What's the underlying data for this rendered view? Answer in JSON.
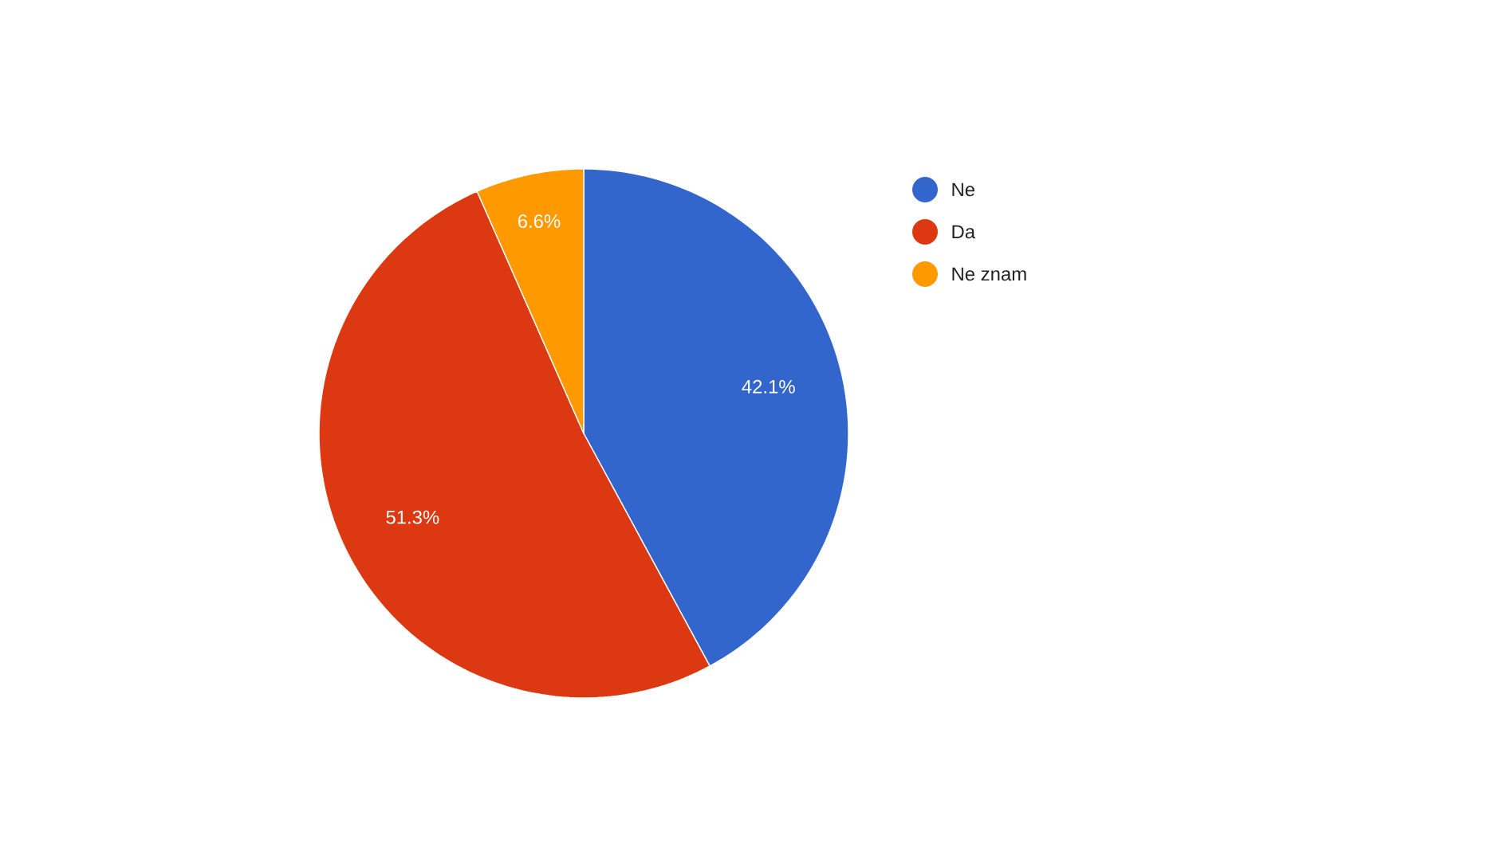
{
  "chart_data": {
    "type": "pie",
    "categories": [
      "Ne",
      "Da",
      "Ne znam"
    ],
    "values": [
      42.1,
      51.3,
      6.6
    ],
    "colors": [
      "#3366cc",
      "#dc3912",
      "#ff9900"
    ],
    "value_labels": [
      "42.1%",
      "51.3%",
      "6.6%"
    ],
    "legend": "right"
  }
}
